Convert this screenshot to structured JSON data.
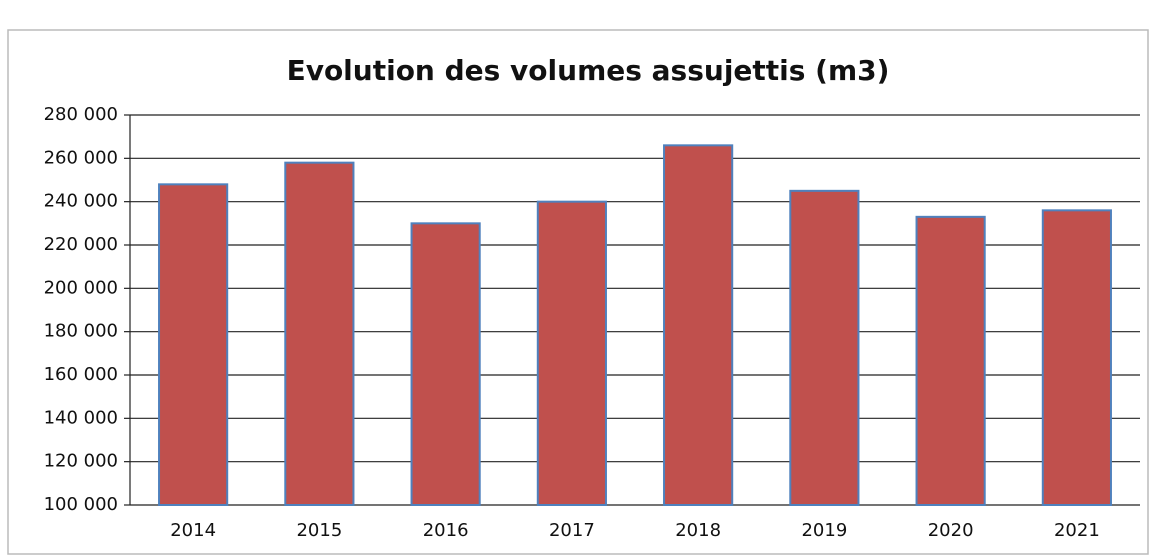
{
  "chart_data": {
    "type": "bar",
    "title": "Evolution des volumes assujettis (m3)",
    "categories": [
      "2014",
      "2015",
      "2016",
      "2017",
      "2018",
      "2019",
      "2020",
      "2021"
    ],
    "values": [
      248000,
      258000,
      230000,
      240000,
      266000,
      245000,
      233000,
      236000
    ],
    "color": "#c0504d",
    "ylim": [
      100000,
      280000
    ],
    "yticks": [
      {
        "value": 100000,
        "label": "100 000"
      },
      {
        "value": 120000,
        "label": "120 000"
      },
      {
        "value": 140000,
        "label": "140 000"
      },
      {
        "value": 160000,
        "label": "160 000"
      },
      {
        "value": 180000,
        "label": "180 000"
      },
      {
        "value": 200000,
        "label": "200 000"
      },
      {
        "value": 220000,
        "label": "220 000"
      },
      {
        "value": 240000,
        "label": "240 000"
      },
      {
        "value": 260000,
        "label": "260 000"
      },
      {
        "value": 280000,
        "label": "280 000"
      }
    ],
    "grid": true
  }
}
